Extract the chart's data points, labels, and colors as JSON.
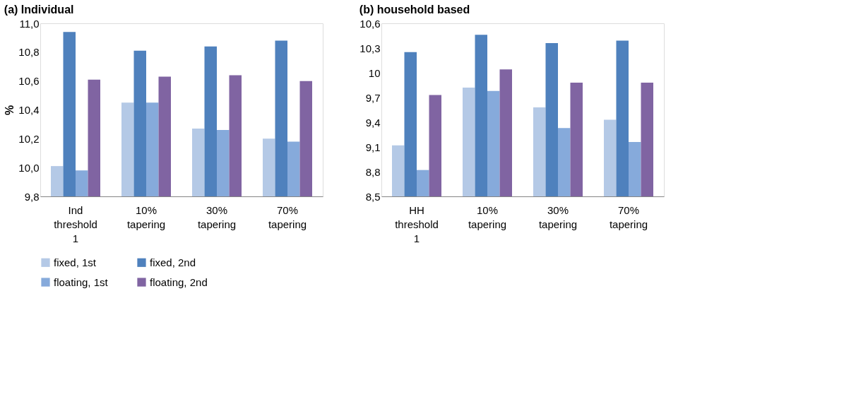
{
  "chart_data": [
    {
      "type": "bar",
      "title": "(a)  Individual",
      "ylabel": "%",
      "categories": [
        "Ind threshold 1",
        "10% tapering",
        "30% tapering",
        "70% tapering"
      ],
      "series": [
        {
          "name": "fixed, 1st",
          "color": "#b4c9e6",
          "values": [
            10.01,
            10.45,
            10.27,
            10.2
          ]
        },
        {
          "name": "fixed, 2nd",
          "color": "#4f81bd",
          "values": [
            10.94,
            10.81,
            10.84,
            10.88
          ]
        },
        {
          "name": "floating, 1st",
          "color": "#86aadb",
          "values": [
            9.98,
            10.45,
            10.26,
            10.18
          ]
        },
        {
          "name": "floating, 2nd",
          "color": "#8064a2",
          "values": [
            10.61,
            10.63,
            10.64,
            10.6
          ]
        }
      ],
      "ylim": [
        9.8,
        11.0
      ],
      "yticks": [
        {
          "value": 9.8,
          "label": "9,8"
        },
        {
          "value": 10.0,
          "label": "10,0"
        },
        {
          "value": 10.2,
          "label": "10,2"
        },
        {
          "value": 10.4,
          "label": "10,4"
        },
        {
          "value": 10.6,
          "label": "10,6"
        },
        {
          "value": 10.8,
          "label": "10,8"
        },
        {
          "value": 11.0,
          "label": "11,0"
        }
      ],
      "legend": "bottom"
    },
    {
      "type": "bar",
      "title": "(b) household based",
      "categories": [
        "HH threshold 1",
        "10% tapering",
        "30% tapering",
        "70% tapering"
      ],
      "series": [
        {
          "name": "fixed, 1st",
          "color": "#b4c9e6",
          "values": [
            9.12,
            9.82,
            9.58,
            9.43
          ]
        },
        {
          "name": "fixed, 2nd",
          "color": "#4f81bd",
          "values": [
            10.25,
            10.46,
            10.36,
            10.39
          ]
        },
        {
          "name": "floating, 1st",
          "color": "#86aadb",
          "values": [
            8.82,
            9.78,
            9.33,
            9.16
          ]
        },
        {
          "name": "floating, 2nd",
          "color": "#8064a2",
          "values": [
            9.73,
            10.04,
            9.88,
            9.88
          ]
        }
      ],
      "ylim": [
        8.5,
        10.6
      ],
      "yticks": [
        {
          "value": 8.5,
          "label": "8,5"
        },
        {
          "value": 8.8,
          "label": "8,8"
        },
        {
          "value": 9.1,
          "label": "9,1"
        },
        {
          "value": 9.4,
          "label": "9,4"
        },
        {
          "value": 9.7,
          "label": "9,7"
        },
        10,
        {
          "value": 10.3,
          "label": "10,3"
        },
        {
          "value": 10.6,
          "label": "10,6"
        }
      ],
      "legend": "bottom"
    }
  ]
}
